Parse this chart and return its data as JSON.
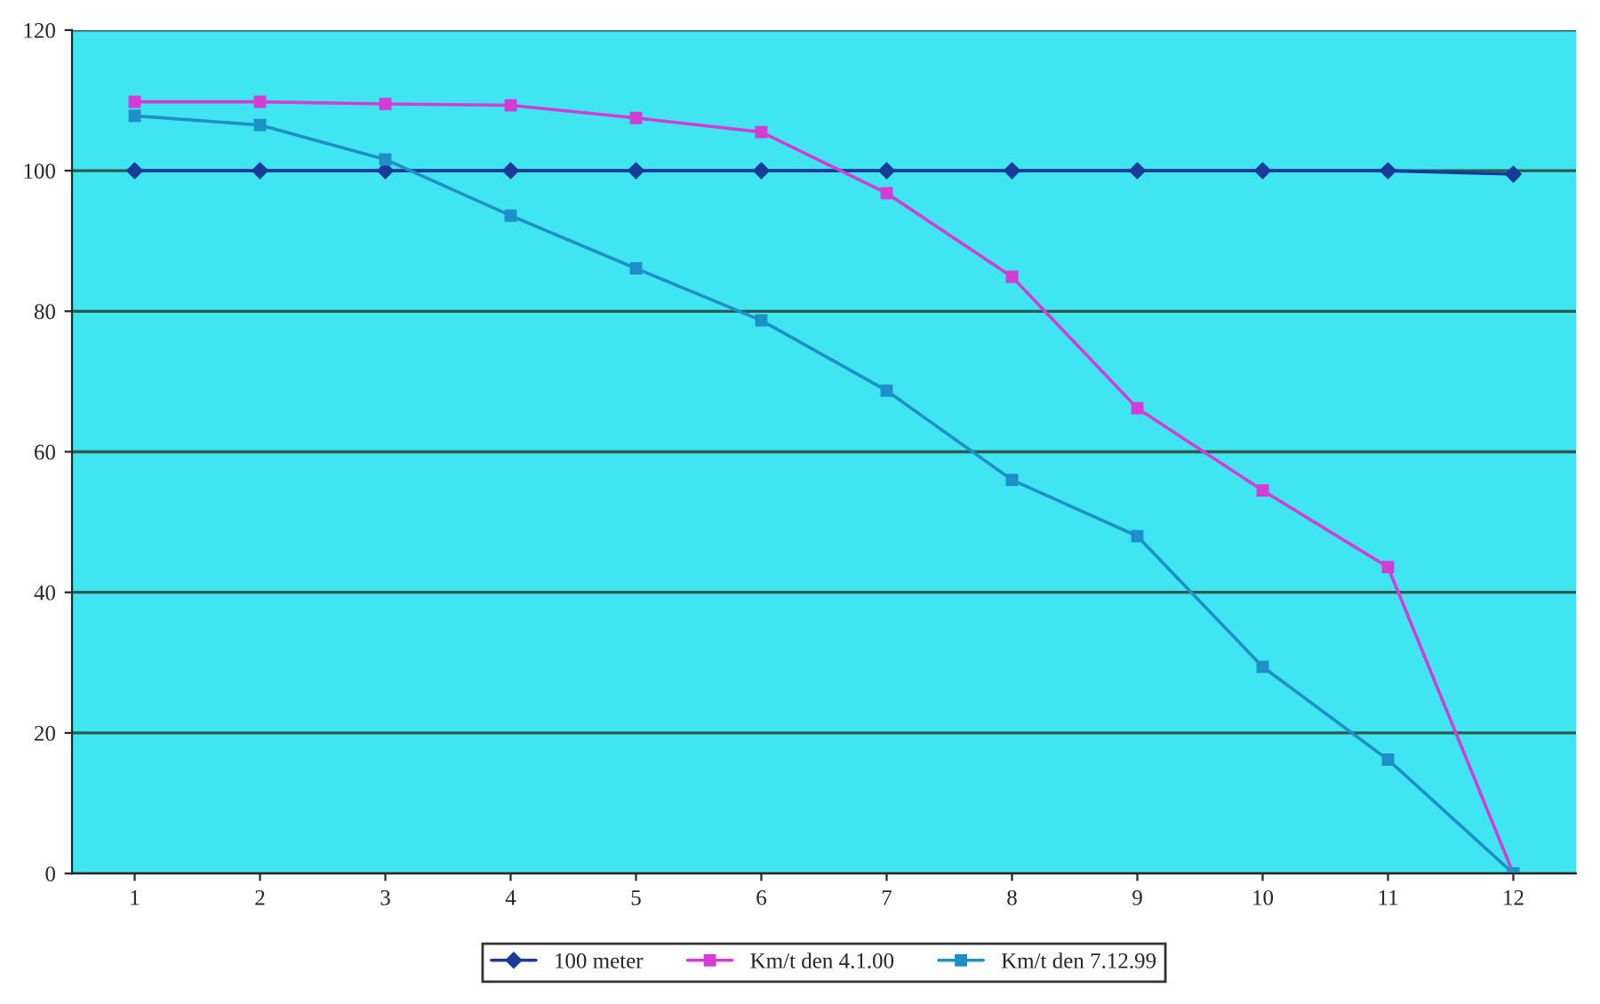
{
  "chart_data": {
    "type": "line",
    "categories": [
      "1",
      "2",
      "3",
      "4",
      "5",
      "6",
      "7",
      "8",
      "9",
      "10",
      "11",
      "12"
    ],
    "series": [
      {
        "name": "100 meter",
        "color": "#1a3a9a",
        "marker": "diamond",
        "values": [
          100,
          100,
          100,
          100,
          100,
          100,
          100,
          100,
          100,
          100,
          100,
          99.5
        ]
      },
      {
        "name": "Km/t den 4.1.00",
        "color": "#d43cd4",
        "marker": "square",
        "values": [
          109.8,
          109.8,
          109.5,
          109.3,
          107.5,
          105.5,
          96.8,
          84.9,
          66.2,
          54.5,
          43.6,
          0
        ]
      },
      {
        "name": "Km/t den 7.12.99",
        "color": "#1f8fc8",
        "marker": "square",
        "values": [
          107.8,
          106.5,
          101.6,
          93.6,
          86.1,
          78.7,
          68.7,
          56,
          48,
          29.4,
          16.2,
          0
        ]
      }
    ],
    "ylim": [
      0,
      120
    ],
    "yticks": [
      0,
      20,
      40,
      60,
      80,
      100,
      120
    ],
    "grid": "y",
    "legend": "bottom",
    "line_style": "solid"
  }
}
